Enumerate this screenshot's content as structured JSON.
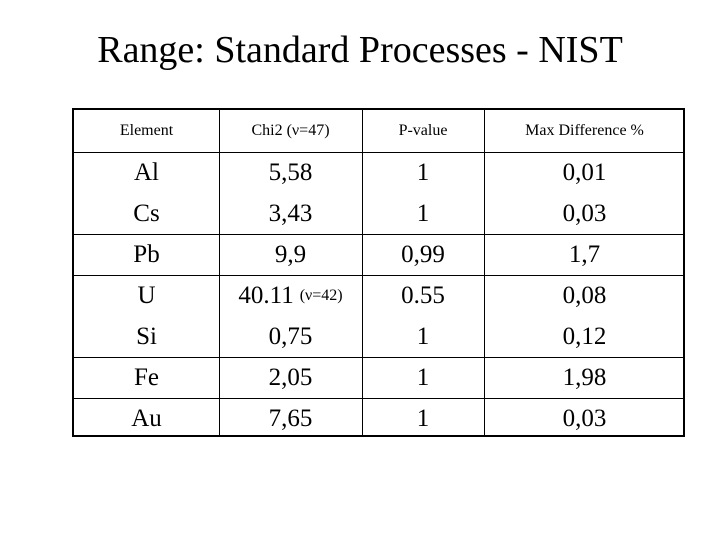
{
  "title": "Range: Standard Processes - NIST",
  "table": {
    "headers": [
      "Element",
      "Chi2 (ν=47)",
      "P-value",
      "Max Difference %"
    ],
    "rows": [
      {
        "element": "Al",
        "chi2": "5,58",
        "p_value": "1",
        "max_diff": "0,01"
      },
      {
        "element": "Cs",
        "chi2": "3,43",
        "p_value": "1",
        "max_diff": "0,03"
      },
      {
        "element": "Pb",
        "chi2": "9,9",
        "p_value": "0,99",
        "max_diff": "1,7"
      },
      {
        "element": "U",
        "chi2": "40.11",
        "chi2_note": "(ν=42)",
        "p_value": "0.55",
        "max_diff": "0,08"
      },
      {
        "element": "Si",
        "chi2": "0,75",
        "p_value": "1",
        "max_diff": "0,12"
      },
      {
        "element": "Fe",
        "chi2": "2,05",
        "p_value": "1",
        "max_diff": "1,98"
      },
      {
        "element": "Au",
        "chi2": "7,65",
        "p_value": "1",
        "max_diff": "0,03"
      }
    ]
  }
}
